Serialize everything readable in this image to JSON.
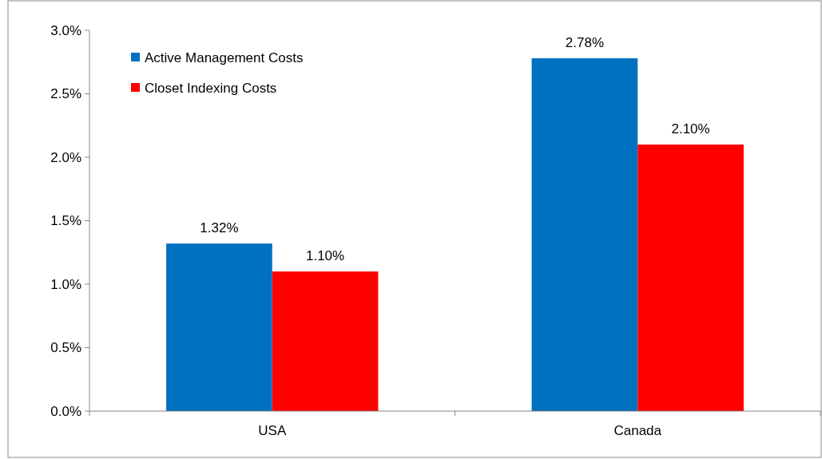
{
  "chart_data": {
    "type": "bar",
    "categories": [
      "USA",
      "Canada"
    ],
    "series": [
      {
        "name": "Active Management Costs",
        "color": "#0070c0",
        "values": [
          1.32,
          2.78
        ],
        "value_labels": [
          "1.32%",
          "2.78%"
        ]
      },
      {
        "name": "Closet Indexing Costs",
        "color": "#ff0000",
        "values": [
          1.1,
          2.1
        ],
        "value_labels": [
          "1.10%",
          "2.10%"
        ]
      }
    ],
    "ylim": [
      0,
      3
    ],
    "yticks": [
      {
        "value": 0,
        "label": "0.0%"
      },
      {
        "value": 0.5,
        "label": "0.5%"
      },
      {
        "value": 1,
        "label": "1.0%"
      },
      {
        "value": 1.5,
        "label": "1.5%"
      },
      {
        "value": 2,
        "label": "2.0%"
      },
      {
        "value": 2.5,
        "label": "2.5%"
      },
      {
        "value": 3,
        "label": "3.0%"
      }
    ],
    "legend": "top left",
    "grid": false
  }
}
